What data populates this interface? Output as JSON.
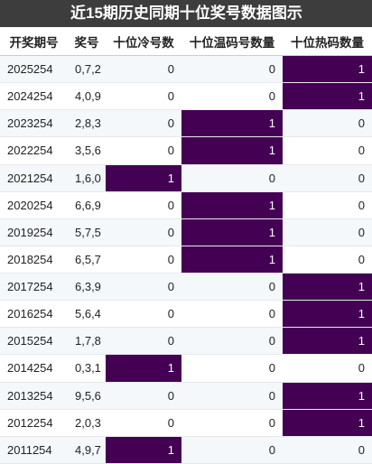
{
  "header": {
    "title": "近15期历史同期十位奖号数据图示"
  },
  "table": {
    "columns": [
      "开奖期号",
      "奖号",
      "十位冷号数",
      "十位温码号数量",
      "十位热码数量"
    ],
    "rows": [
      [
        "2025254",
        "0,7,2",
        0,
        0,
        1
      ],
      [
        "2024254",
        "4,0,9",
        0,
        0,
        1
      ],
      [
        "2023254",
        "2,8,3",
        0,
        1,
        0
      ],
      [
        "2022254",
        "3,5,6",
        0,
        1,
        0
      ],
      [
        "2021254",
        "1,6,0",
        1,
        0,
        0
      ],
      [
        "2020254",
        "6,6,9",
        0,
        1,
        0
      ],
      [
        "2019254",
        "5,7,5",
        0,
        1,
        0
      ],
      [
        "2018254",
        "6,5,7",
        0,
        1,
        0
      ],
      [
        "2017254",
        "6,3,9",
        0,
        0,
        1
      ],
      [
        "2016254",
        "5,6,4",
        0,
        0,
        1
      ],
      [
        "2015254",
        "1,7,8",
        0,
        0,
        1
      ],
      [
        "2014254",
        "0,3,1",
        1,
        0,
        0
      ],
      [
        "2013254",
        "9,5,6",
        0,
        0,
        1
      ],
      [
        "2012254",
        "2,0,3",
        0,
        0,
        1
      ],
      [
        "2011254",
        "4,9,7",
        1,
        0,
        0
      ]
    ],
    "highlight_color": "#440154"
  }
}
